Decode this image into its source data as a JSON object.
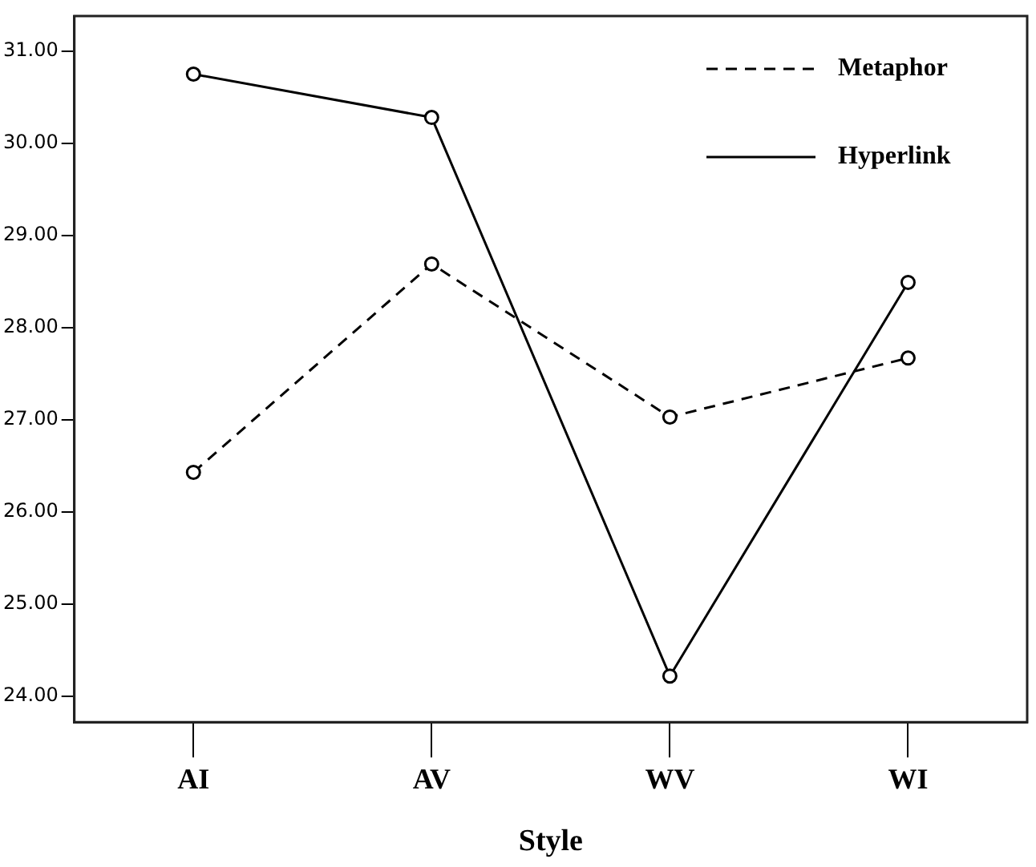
{
  "chart_data": {
    "type": "line",
    "xlabel": "Style",
    "categories": [
      "AI",
      "AV",
      "WV",
      "WI"
    ],
    "series": [
      {
        "name": "Metaphor",
        "color": "#000000",
        "line_style": "dashed",
        "values": [
          26.43,
          28.69,
          27.03,
          27.67
        ]
      },
      {
        "name": "Hyperlink",
        "color": "#000000",
        "line_style": "solid",
        "values": [
          30.75,
          30.28,
          24.22,
          28.49
        ]
      }
    ],
    "ylim": [
      23.72,
      31.38
    ],
    "yticks": [
      {
        "value": 24,
        "label": "24.00"
      },
      {
        "value": 25,
        "label": "25.00"
      },
      {
        "value": 26,
        "label": "26.00"
      },
      {
        "value": 27,
        "label": "27.00"
      },
      {
        "value": 28,
        "label": "28.00"
      },
      {
        "value": 29,
        "label": "29.00"
      },
      {
        "value": 30,
        "label": "30.00"
      },
      {
        "value": 31,
        "label": "31.00"
      }
    ],
    "grid": false,
    "legend": "top right",
    "marker": "circle"
  }
}
